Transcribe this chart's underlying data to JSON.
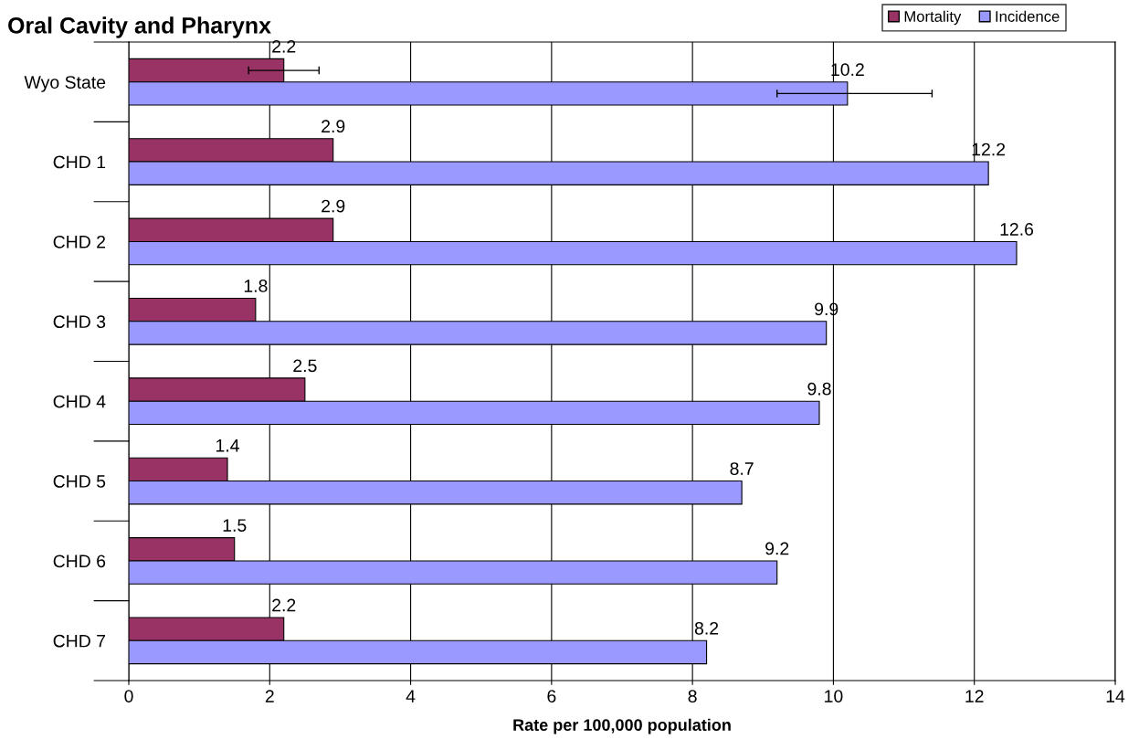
{
  "chart_data": {
    "type": "bar",
    "orientation": "horizontal",
    "title": "Oral Cavity and Pharynx",
    "xlabel": "Rate per 100,000 population",
    "categories": [
      "Wyo State",
      "CHD 1",
      "CHD 2",
      "CHD 3",
      "CHD 4",
      "CHD 5",
      "CHD 6",
      "CHD 7"
    ],
    "series": [
      {
        "name": "Mortality",
        "color": "#993366",
        "values": [
          2.2,
          2.9,
          2.9,
          1.8,
          2.5,
          1.4,
          1.5,
          2.2
        ],
        "errors": [
          [
            1.7,
            2.7
          ],
          null,
          null,
          null,
          null,
          null,
          null,
          null
        ]
      },
      {
        "name": "Incidence",
        "color": "#9999ff",
        "values": [
          10.2,
          12.2,
          12.6,
          9.9,
          9.8,
          8.7,
          9.2,
          8.2
        ],
        "errors": [
          [
            9.2,
            11.4
          ],
          null,
          null,
          null,
          null,
          null,
          null,
          null
        ]
      }
    ],
    "xlim": [
      0,
      14
    ],
    "xticks": [
      0,
      2,
      4,
      6,
      8,
      10,
      12,
      14
    ],
    "grid": "x",
    "legend": "top right",
    "data_labels": true
  }
}
